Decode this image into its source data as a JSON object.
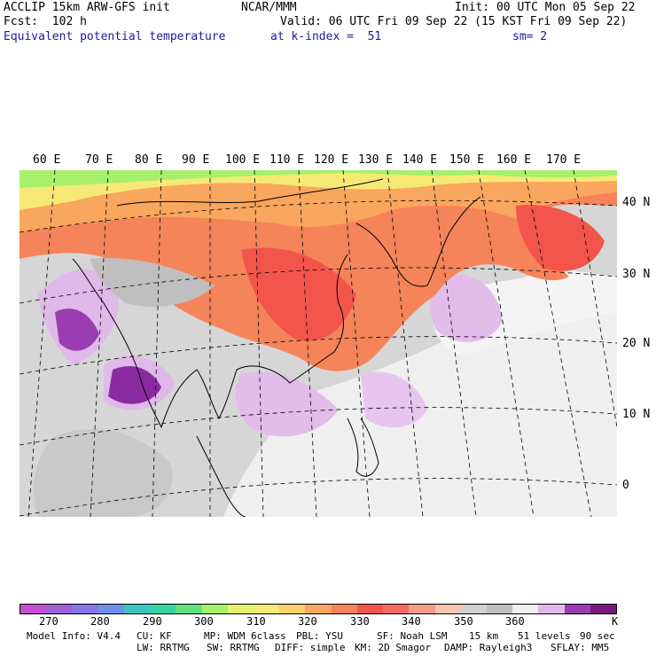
{
  "header": {
    "model": "ACCLIP 15km ARW-GFS init",
    "org": "NCAR/MMM",
    "init": "Init: 00 UTC Mon 05 Sep 22",
    "fcst": "Fcst:  102 h",
    "valid": "Valid: 06 UTC Fri 09 Sep 22 (15 KST Fri 09 Sep 22)",
    "field": "Equivalent potential temperature",
    "level": "at k-index =  51",
    "smooth": "sm= 2"
  },
  "lon_labels": [
    "60 E",
    "70 E",
    "80 E",
    "90 E",
    "100 E",
    "110 E",
    "120 E",
    "130 E",
    "140 E",
    "150 E",
    "160 E",
    "170 E"
  ],
  "lat_labels": [
    "40 N",
    "30 N",
    "20 N",
    "10 N",
    "0"
  ],
  "colorbar": {
    "colors": [
      "#c34fd1",
      "#9f5fd9",
      "#8476e6",
      "#6f8fe8",
      "#3bc6c2",
      "#33d6a0",
      "#5fe37c",
      "#a8f06b",
      "#e4f56c",
      "#f7e975",
      "#f9cf6a",
      "#f9a65e",
      "#f5845a",
      "#f3554d",
      "#f46b62",
      "#f79a86",
      "#f5c4ad",
      "#d2cfcc",
      "#bfbfbf",
      "#f0f0f0",
      "#e2b8ec",
      "#9b3cb0",
      "#7a1780"
    ],
    "ticks": [
      "270",
      "280",
      "290",
      "300",
      "310",
      "320",
      "330",
      "340",
      "350",
      "360"
    ],
    "unit": "K"
  },
  "footer": {
    "line1": [
      "Model Info: V4.4",
      "CU: KF",
      "MP: WDM 6class",
      "PBL: YSU",
      "SF: Noah LSM",
      "15 km",
      "51 levels",
      "90 sec"
    ],
    "line2": [
      "LW: RRTMG",
      "SW: RRTMG",
      "DIFF: simple",
      "KM: 2D Smagor",
      "DAMP: Rayleigh3",
      "SFLAY: MM5"
    ]
  }
}
